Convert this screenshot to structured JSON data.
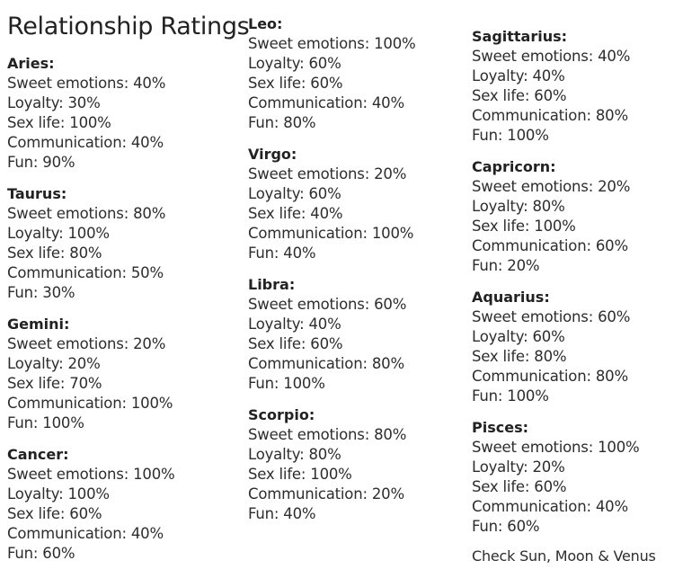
{
  "title": "Relationship Ratings",
  "columns": [
    {
      "signs": [
        {
          "name": "Aries:",
          "lines": [
            "Sweet emotions: 40%",
            "Loyalty: 30%",
            "Sex life: 100%",
            "Communication: 40%",
            "Fun: 90%"
          ]
        },
        {
          "name": "Taurus:",
          "lines": [
            "Sweet emotions: 80%",
            "Loyalty: 100%",
            "Sex life: 80%",
            "Communication: 50%",
            "Fun: 30%"
          ]
        },
        {
          "name": "Gemini:",
          "lines": [
            "Sweet emotions: 20%",
            "Loyalty: 20%",
            "Sex life: 70%",
            "Communication: 100%",
            "Fun: 100%"
          ]
        },
        {
          "name": "Cancer:",
          "lines": [
            "Sweet emotions: 100%",
            "Loyalty: 100%",
            "Sex life: 60%",
            "Communication: 40%",
            "Fun: 60%"
          ]
        }
      ]
    },
    {
      "signs": [
        {
          "name": "Leo:",
          "lines": [
            "Sweet emotions: 100%",
            "Loyalty: 60%",
            "Sex life: 60%",
            "Communication: 40%",
            "Fun: 80%"
          ]
        },
        {
          "name": "Virgo:",
          "lines": [
            "Sweet emotions: 20%",
            "Loyalty: 60%",
            "Sex life: 40%",
            "Communication: 100%",
            "Fun: 40%"
          ]
        },
        {
          "name": "Libra:",
          "lines": [
            "Sweet emotions: 60%",
            "Loyalty: 40%",
            "Sex life: 60%",
            "Communication: 80%",
            "Fun: 100%"
          ]
        },
        {
          "name": "Scorpio:",
          "lines": [
            "Sweet emotions: 80%",
            "Loyalty: 80%",
            "Sex life: 100%",
            "Communication: 20%",
            "Fun: 40%"
          ]
        }
      ]
    },
    {
      "signs": [
        {
          "name": "Sagittarius:",
          "lines": [
            "Sweet emotions: 40%",
            "Loyalty: 40%",
            "Sex life: 60%",
            "Communication: 80%",
            "Fun: 100%"
          ]
        },
        {
          "name": "Capricorn:",
          "lines": [
            "Sweet emotions: 20%",
            "Loyalty: 80%",
            "Sex life: 100%",
            "Communication: 60%",
            "Fun: 20%"
          ]
        },
        {
          "name": "Aquarius:",
          "lines": [
            "Sweet emotions: 60%",
            "Loyalty: 60%",
            "Sex life: 80%",
            "Communication: 80%",
            "Fun: 100%"
          ]
        },
        {
          "name": "Pisces:",
          "lines": [
            "Sweet emotions: 100%",
            "Loyalty: 20%",
            "Sex life: 60%",
            "Communication: 40%",
            "Fun: 60%"
          ]
        }
      ]
    }
  ],
  "footer_note": "Check Sun, Moon & Venus"
}
